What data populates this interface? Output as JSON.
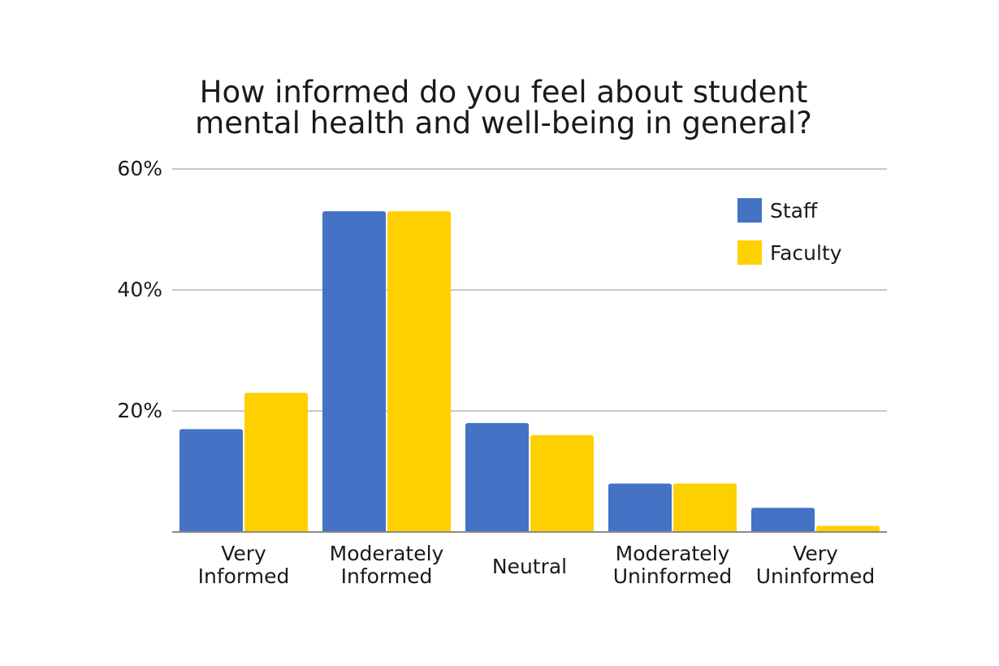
{
  "chart_data": {
    "type": "bar",
    "title_lines": [
      "How informed do you feel about student",
      "mental health and well-being in general?"
    ],
    "categories": [
      [
        "Very",
        "Informed"
      ],
      [
        "Moderately",
        "Informed"
      ],
      [
        "Neutral"
      ],
      [
        "Moderately",
        "Uninformed"
      ],
      [
        "Very",
        "Uninformed"
      ]
    ],
    "series": [
      {
        "name": "Staff",
        "color": "#4472c4",
        "values": [
          17,
          53,
          18,
          8,
          4
        ]
      },
      {
        "name": "Faculty",
        "color": "#ffd000",
        "values": [
          23,
          53,
          16,
          8,
          1
        ]
      }
    ],
    "yticks": [
      {
        "value": 20,
        "label": "20%"
      },
      {
        "value": 40,
        "label": "40%"
      },
      {
        "value": 60,
        "label": "60%"
      }
    ],
    "ylim": [
      0,
      60
    ],
    "grid": true,
    "legend_position": "top-right",
    "xlabel": "",
    "ylabel": ""
  }
}
